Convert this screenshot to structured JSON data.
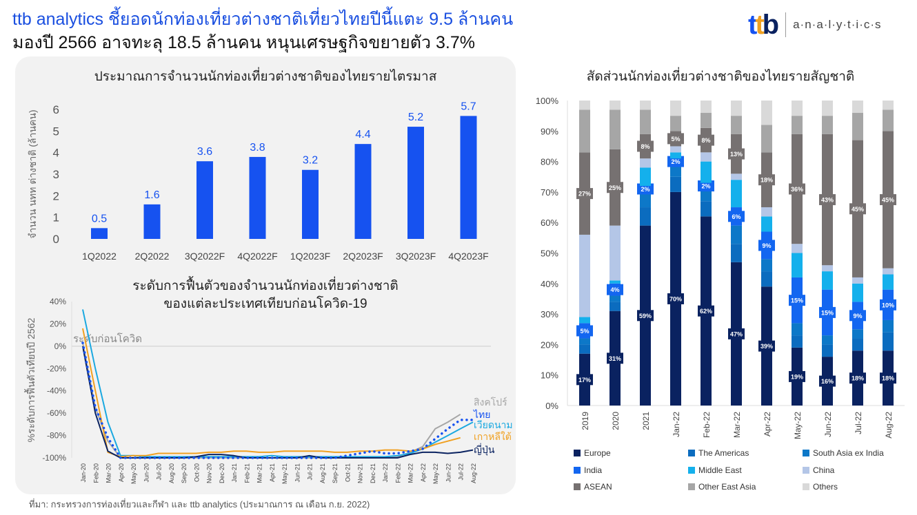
{
  "header": {
    "title_line1": "ttb analytics ชี้ยอดนักท่องเที่ยวต่างชาติเที่ยวไทยปีนี้แตะ 9.5 ล้านคน",
    "title_line2": "มองปี 2566 อาจทะลุ 18.5 ล้านคน หนุนเศรษฐกิจขยายตัว 3.7%",
    "logo_mark": "ttb",
    "logo_word": "a·n·a·l·y·t·i·c·s"
  },
  "source": "ที่มา: กระทรวงการท่องเที่ยวและกีฬา และ ttb analytics (ประมาณการ ณ เดือน ก.ย. 2022)",
  "colors": {
    "primary_blue": "#1652f0",
    "orange": "#f0a020",
    "navy": "#0a2260"
  },
  "chart_data": [
    {
      "type": "bar",
      "title": "ประมาณการจำนวนนักท่องเที่ยวต่างชาติของไทยรายไตรมาส",
      "ylabel": "จำนวน นทท ต่างชาติ (ล้านคน)",
      "xlabel": "",
      "categories": [
        "1Q2022",
        "2Q2022",
        "3Q2022F",
        "4Q2022F",
        "1Q2023F",
        "2Q2023F",
        "3Q2023F",
        "4Q2023F"
      ],
      "values": [
        0.5,
        1.6,
        3.6,
        3.8,
        3.2,
        4.4,
        5.2,
        5.7
      ],
      "data_labels": [
        "0.5",
        "1.6",
        "3.6",
        "3.8",
        "3.2",
        "4.4",
        "5.2",
        "5.7"
      ],
      "ylim": [
        0,
        6
      ],
      "yticks": [
        "0",
        "1",
        "2",
        "3",
        "4",
        "5",
        "6"
      ],
      "color": "#1652f0",
      "grid": false
    },
    {
      "type": "line",
      "title": "ระดับการฟื้นตัวของจำนวนนักท่องเที่ยวต่างชาติ",
      "subtitle": "ของแต่ละประเทศเทียบก่อนโควิด-19",
      "ylabel": "%ระดับการฟื้นตัวเทียบปี 2562",
      "reference_label": "ระดับก่อนโควิด",
      "ylim": [
        -100,
        40
      ],
      "yticks": [
        "40%",
        "20%",
        "0%",
        "-20%",
        "-40%",
        "-60%",
        "-80%",
        "-100%"
      ],
      "x": [
        "Jan-20",
        "Feb-20",
        "Mar-20",
        "Apr-20",
        "May-20",
        "Jun-20",
        "Jul-20",
        "Aug-20",
        "Sep-20",
        "Oct-20",
        "Nov-20",
        "Dec-20",
        "Jan-21",
        "Feb-21",
        "Mar-21",
        "Apr-21",
        "May-21",
        "Jun-21",
        "Jul-21",
        "Aug-21",
        "Sep-21",
        "Oct-21",
        "Nov-21",
        "Dec-21",
        "Jan-22",
        "Feb-22",
        "Mar-22",
        "Apr-22",
        "May-22",
        "Jun-22",
        "Jul-22",
        "Aug-22"
      ],
      "series": [
        {
          "name": "สิงคโปร์",
          "color": "#a6a6a6",
          "dashed": false,
          "values": [
            3,
            -55,
            -85,
            -100,
            -100,
            -100,
            -100,
            -100,
            -100,
            -100,
            -100,
            -100,
            -100,
            -100,
            -100,
            -100,
            -100,
            -100,
            -100,
            -100,
            -100,
            -100,
            -100,
            -100,
            -100,
            -99,
            -95,
            -90,
            -74,
            -68,
            -61,
            null
          ]
        },
        {
          "name": "เวียดนาม",
          "color": "#1aa8e0",
          "dashed": false,
          "values": [
            33,
            -20,
            -68,
            -98,
            -98,
            -99,
            -99,
            -99,
            -99,
            -99,
            -99,
            -99,
            -99,
            -99,
            -99,
            -98,
            -99,
            -99,
            -99,
            -99,
            -99,
            -99,
            -99,
            -99,
            -99,
            -98,
            -96,
            -92,
            -86,
            -80,
            -74,
            -68
          ]
        },
        {
          "name": "เกาหลีใต้",
          "color": "#f0a020",
          "dashed": false,
          "values": [
            16,
            -40,
            -95,
            -99,
            -98,
            -98,
            -96,
            -96,
            -96,
            -96,
            -95,
            -95,
            -94,
            -94,
            -95,
            -95,
            -94,
            -94,
            -94,
            -94,
            -95,
            -95,
            -94,
            -94,
            -93,
            -93,
            -94,
            -92,
            -88,
            -85,
            -82,
            null
          ]
        },
        {
          "name": "ญี่ปุ่น",
          "color": "#0a2260",
          "dashed": false,
          "values": [
            0,
            -60,
            -94,
            -100,
            -100,
            -100,
            -100,
            -100,
            -100,
            -99,
            -97,
            -97,
            -98,
            -100,
            -100,
            -100,
            -100,
            -100,
            -98,
            -100,
            -100,
            -100,
            -100,
            -100,
            -100,
            -100,
            -97,
            -95,
            -95,
            -96,
            -95,
            -93
          ]
        },
        {
          "name": "ไทย",
          "color": "#1652f0",
          "dashed": true,
          "values": [
            3,
            -55,
            -82,
            -100,
            -100,
            -100,
            -100,
            -100,
            -100,
            -100,
            -100,
            -100,
            -100,
            -100,
            -100,
            -100,
            -100,
            -100,
            -100,
            -100,
            -100,
            -98,
            -96,
            -94,
            -96,
            -96,
            -94,
            -92,
            -83,
            -74,
            -66,
            -66
          ]
        }
      ]
    },
    {
      "type": "bar",
      "stacked": true,
      "title": "สัดส่วนนักท่องเที่ยวต่างชาติของไทยรายสัญชาติ",
      "categories": [
        "2019",
        "2020",
        "2021",
        "Jan-22",
        "Feb-22",
        "Mar-22",
        "Apr-22",
        "May-22",
        "Jun-22",
        "Jul-22",
        "Aug-22"
      ],
      "ylim": [
        0,
        100
      ],
      "yticks": [
        "0%",
        "10%",
        "20%",
        "30%",
        "40%",
        "50%",
        "60%",
        "70%",
        "80%",
        "90%",
        "100%"
      ],
      "legend_position": "bottom",
      "series": [
        {
          "name": "Europe",
          "color": "#0a2260",
          "labeled": true,
          "values": [
            17,
            31,
            59,
            70,
            62,
            47,
            39,
            19,
            16,
            18,
            18
          ]
        },
        {
          "name": "The Americas",
          "color": "#0b6cbf",
          "labeled": false,
          "values": [
            3,
            3,
            6,
            5,
            5,
            6,
            5,
            4,
            4,
            4,
            6
          ]
        },
        {
          "name": "South Asia ex India",
          "color": "#0d78c8",
          "labeled": false,
          "values": [
            2,
            2,
            5,
            4,
            4,
            6,
            4,
            4,
            3,
            3,
            4
          ]
        },
        {
          "name": "India",
          "color": "#1366f0",
          "labeled": true,
          "values": [
            5,
            4,
            2,
            2,
            2,
            6,
            9,
            15,
            15,
            9,
            10
          ]
        },
        {
          "name": "Middle East",
          "color": "#14b0ec",
          "labeled": false,
          "values": [
            2,
            1,
            6,
            2,
            7,
            9,
            5,
            8,
            6,
            6,
            5
          ]
        },
        {
          "name": "China",
          "color": "#b4c6e7",
          "labeled": false,
          "values": [
            27,
            18,
            3,
            2,
            3,
            2,
            3,
            3,
            2,
            2,
            2
          ]
        },
        {
          "name": "ASEAN",
          "color": "#767171",
          "labeled": true,
          "values": [
            27,
            25,
            8,
            5,
            8,
            13,
            18,
            36,
            43,
            45,
            45
          ]
        },
        {
          "name": "Other East Asia",
          "color": "#a6a6a6",
          "labeled": false,
          "values": [
            14,
            13,
            8,
            5,
            5,
            6,
            9,
            6,
            6,
            9,
            7
          ]
        },
        {
          "name": "Others",
          "color": "#d9d9d9",
          "labeled": false,
          "values": [
            3,
            3,
            3,
            5,
            4,
            5,
            8,
            5,
            5,
            4,
            3
          ]
        }
      ]
    }
  ]
}
